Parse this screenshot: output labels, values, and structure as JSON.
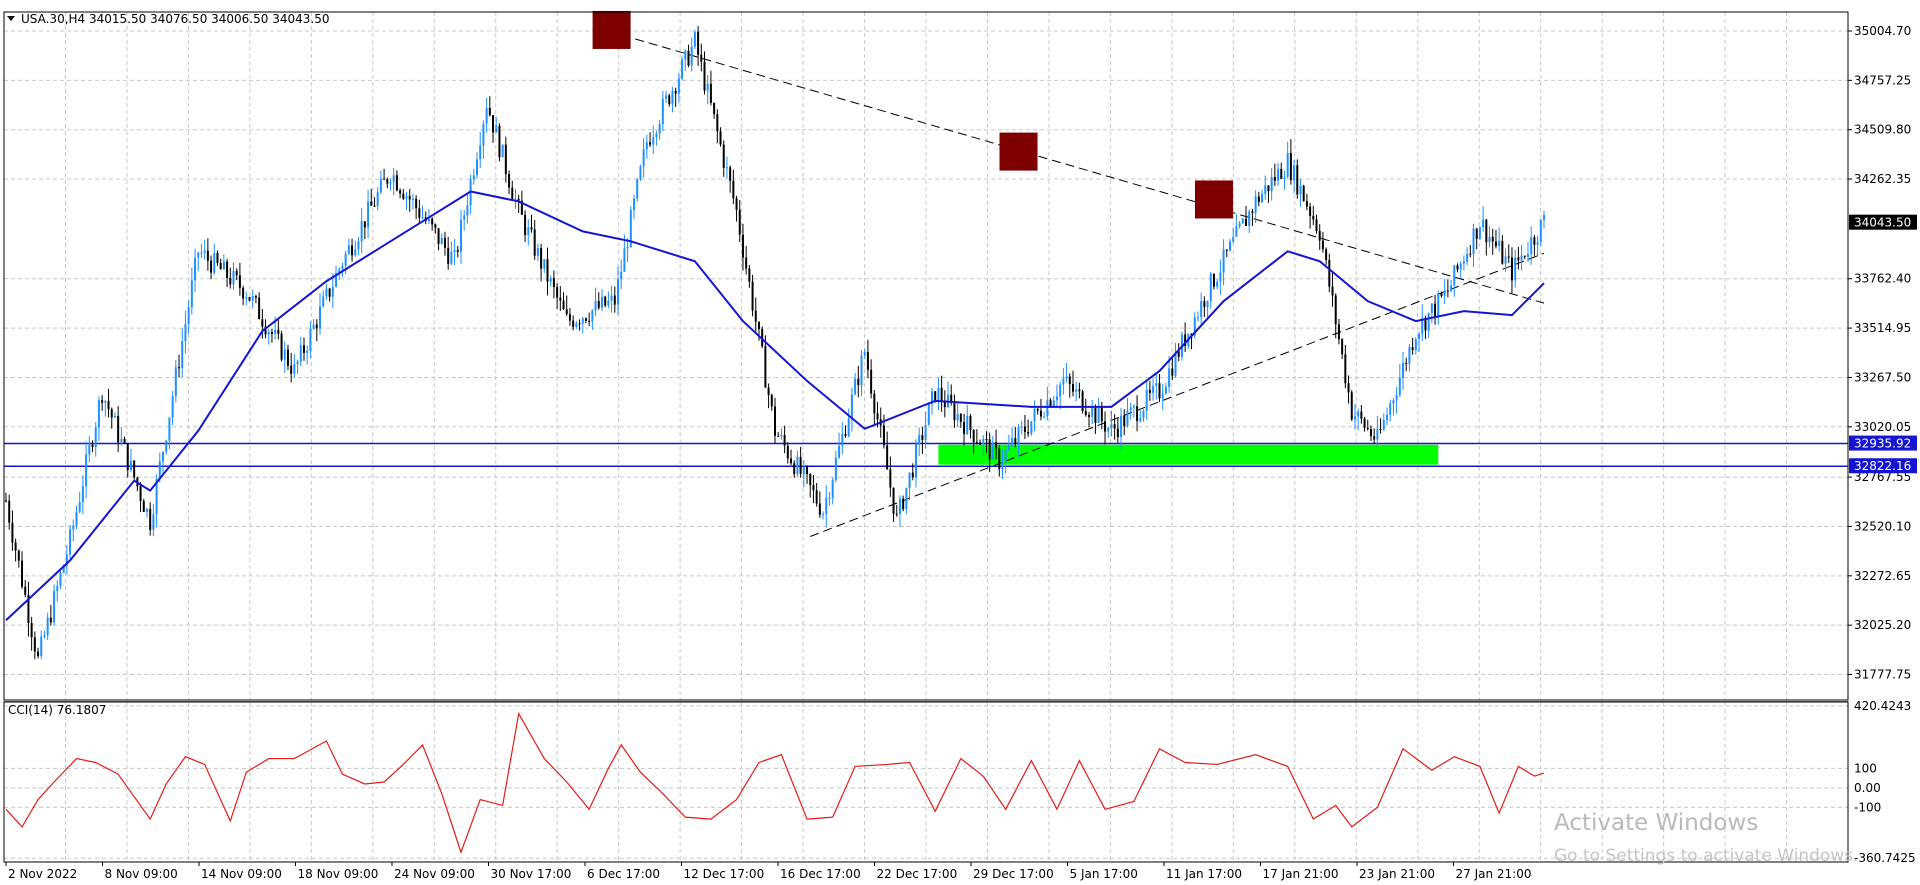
{
  "symbol_header": "USA.30,H4  34015.50 34076.50 34006.50 34043.50",
  "indicator_header": "CCI(14) 76.1807",
  "colors": {
    "grid": "#c8c8c8",
    "frame": "#000000",
    "ma": "#1414d2",
    "cci": "#e41b17",
    "horizontal_line": "#1414d2",
    "support_zone": "#00ff00",
    "peak_box": "#7e0000",
    "last_price_label": "#000000"
  },
  "chart_data": [
    {
      "type": "candlestick",
      "timeframe": "H4",
      "ylim": [
        31650,
        35100
      ],
      "y_ticks": [
        35004.7,
        34757.25,
        34509.8,
        34262.35,
        33762.4,
        33514.95,
        33267.5,
        33020.05,
        32767.55,
        32520.1,
        32272.65,
        32025.2,
        31777.75
      ],
      "x_tick_labels": [
        "2 Nov 2022",
        "8 Nov 09:00",
        "14 Nov 09:00",
        "18 Nov 09:00",
        "24 Nov 09:00",
        "30 Nov 17:00",
        "6 Dec 17:00",
        "12 Dec 17:00",
        "16 Dec 17:00",
        "22 Dec 17:00",
        "29 Dec 17:00",
        "5 Jan 17:00",
        "11 Jan 17:00",
        "17 Jan 21:00",
        "23 Jan 21:00",
        "27 Jan 21:00"
      ],
      "ohlc_last": {
        "open": 34015.5,
        "high": 34076.5,
        "low": 34006.5,
        "close": 34043.5
      },
      "last_price_label": "34043.50",
      "close_path": [
        {
          "x": 0,
          "close": 32650
        },
        {
          "x": 10,
          "close": 31850
        },
        {
          "x": 20,
          "close": 32450
        },
        {
          "x": 30,
          "close": 33200
        },
        {
          "x": 45,
          "close": 32550
        },
        {
          "x": 60,
          "close": 33900
        },
        {
          "x": 75,
          "close": 33700
        },
        {
          "x": 90,
          "close": 33300
        },
        {
          "x": 105,
          "close": 33850
        },
        {
          "x": 120,
          "close": 34300
        },
        {
          "x": 140,
          "close": 33850
        },
        {
          "x": 150,
          "close": 34650
        },
        {
          "x": 160,
          "close": 34100
        },
        {
          "x": 175,
          "close": 33550
        },
        {
          "x": 190,
          "close": 33650
        },
        {
          "x": 200,
          "close": 34450
        },
        {
          "x": 215,
          "close": 34950
        },
        {
          "x": 228,
          "close": 34100
        },
        {
          "x": 240,
          "close": 33000
        },
        {
          "x": 255,
          "close": 32600
        },
        {
          "x": 268,
          "close": 33400
        },
        {
          "x": 278,
          "close": 32550
        },
        {
          "x": 290,
          "close": 33200
        },
        {
          "x": 310,
          "close": 32850
        },
        {
          "x": 330,
          "close": 33250
        },
        {
          "x": 345,
          "close": 33000
        },
        {
          "x": 360,
          "close": 33200
        },
        {
          "x": 375,
          "close": 33700
        },
        {
          "x": 390,
          "close": 34150
        },
        {
          "x": 400,
          "close": 34350
        },
        {
          "x": 410,
          "close": 34000
        },
        {
          "x": 420,
          "close": 33100
        },
        {
          "x": 428,
          "close": 32950
        },
        {
          "x": 440,
          "close": 33500
        },
        {
          "x": 450,
          "close": 33700
        },
        {
          "x": 460,
          "close": 34050
        },
        {
          "x": 470,
          "close": 33800
        },
        {
          "x": 480,
          "close": 34050
        }
      ],
      "moving_average": [
        {
          "x": 0,
          "value": 32050
        },
        {
          "x": 20,
          "value": 32350
        },
        {
          "x": 40,
          "value": 32750
        },
        {
          "x": 45,
          "value": 32700
        },
        {
          "x": 60,
          "value": 33000
        },
        {
          "x": 80,
          "value": 33500
        },
        {
          "x": 100,
          "value": 33750
        },
        {
          "x": 120,
          "value": 33950
        },
        {
          "x": 135,
          "value": 34100
        },
        {
          "x": 145,
          "value": 34200
        },
        {
          "x": 160,
          "value": 34150
        },
        {
          "x": 180,
          "value": 34000
        },
        {
          "x": 195,
          "value": 33950
        },
        {
          "x": 215,
          "value": 33850
        },
        {
          "x": 230,
          "value": 33550
        },
        {
          "x": 250,
          "value": 33250
        },
        {
          "x": 268,
          "value": 33010
        },
        {
          "x": 290,
          "value": 33150
        },
        {
          "x": 320,
          "value": 33120
        },
        {
          "x": 345,
          "value": 33120
        },
        {
          "x": 360,
          "value": 33300
        },
        {
          "x": 380,
          "value": 33650
        },
        {
          "x": 400,
          "value": 33900
        },
        {
          "x": 410,
          "value": 33850
        },
        {
          "x": 425,
          "value": 33650
        },
        {
          "x": 440,
          "value": 33550
        },
        {
          "x": 455,
          "value": 33600
        },
        {
          "x": 470,
          "value": 33580
        },
        {
          "x": 480,
          "value": 33740
        }
      ],
      "horizontal_levels": [
        {
          "label": "32935.92",
          "price": 32935.92
        },
        {
          "label": "32822.16",
          "price": 32822.16
        }
      ],
      "support_zone": {
        "x_from": 291,
        "x_to": 447,
        "price_from": 32830,
        "price_to": 32930
      },
      "trendlines": [
        {
          "name": "upper",
          "from": {
            "x": 188,
            "price": 35004
          },
          "to": {
            "x": 480,
            "price": 33640
          }
        },
        {
          "name": "lower",
          "from": {
            "x": 251,
            "price": 32470
          },
          "to": {
            "x": 480,
            "price": 33890
          }
        }
      ],
      "peaks": [
        {
          "x": 189,
          "price": 35010
        },
        {
          "x": 316,
          "price": 34400
        },
        {
          "x": 377,
          "price": 34160
        }
      ]
    },
    {
      "type": "line",
      "name": "CCI(14)",
      "value_label": "76.1807",
      "ylim": [
        -380,
        440
      ],
      "y_tick_labels": [
        "420.4243",
        "100",
        "0.00",
        "-100",
        "-360.7425"
      ],
      "y_tick_values": [
        420.4243,
        100,
        0,
        -100,
        -360.7425
      ],
      "series": [
        {
          "x": 0,
          "y": -110
        },
        {
          "x": 5,
          "y": -200
        },
        {
          "x": 10,
          "y": -60
        },
        {
          "x": 15,
          "y": 30
        },
        {
          "x": 22,
          "y": 150
        },
        {
          "x": 28,
          "y": 130
        },
        {
          "x": 35,
          "y": 70
        },
        {
          "x": 45,
          "y": -160
        },
        {
          "x": 50,
          "y": 20
        },
        {
          "x": 56,
          "y": 160
        },
        {
          "x": 62,
          "y": 120
        },
        {
          "x": 70,
          "y": -170
        },
        {
          "x": 75,
          "y": 80
        },
        {
          "x": 82,
          "y": 150
        },
        {
          "x": 90,
          "y": 150
        },
        {
          "x": 100,
          "y": 240
        },
        {
          "x": 105,
          "y": 70
        },
        {
          "x": 112,
          "y": 20
        },
        {
          "x": 118,
          "y": 30
        },
        {
          "x": 124,
          "y": 120
        },
        {
          "x": 130,
          "y": 220
        },
        {
          "x": 136,
          "y": -30
        },
        {
          "x": 142,
          "y": -330
        },
        {
          "x": 148,
          "y": -60
        },
        {
          "x": 155,
          "y": -90
        },
        {
          "x": 160,
          "y": 380
        },
        {
          "x": 168,
          "y": 150
        },
        {
          "x": 175,
          "y": 30
        },
        {
          "x": 182,
          "y": -110
        },
        {
          "x": 188,
          "y": 100
        },
        {
          "x": 192,
          "y": 220
        },
        {
          "x": 198,
          "y": 80
        },
        {
          "x": 205,
          "y": -30
        },
        {
          "x": 212,
          "y": -150
        },
        {
          "x": 220,
          "y": -160
        },
        {
          "x": 228,
          "y": -60
        },
        {
          "x": 235,
          "y": 130
        },
        {
          "x": 242,
          "y": 170
        },
        {
          "x": 250,
          "y": -160
        },
        {
          "x": 258,
          "y": -150
        },
        {
          "x": 265,
          "y": 110
        },
        {
          "x": 275,
          "y": 120
        },
        {
          "x": 282,
          "y": 130
        },
        {
          "x": 290,
          "y": -120
        },
        {
          "x": 298,
          "y": 150
        },
        {
          "x": 305,
          "y": 60
        },
        {
          "x": 312,
          "y": -110
        },
        {
          "x": 320,
          "y": 140
        },
        {
          "x": 328,
          "y": -110
        },
        {
          "x": 335,
          "y": 140
        },
        {
          "x": 343,
          "y": -110
        },
        {
          "x": 352,
          "y": -70
        },
        {
          "x": 360,
          "y": 200
        },
        {
          "x": 368,
          "y": 130
        },
        {
          "x": 378,
          "y": 120
        },
        {
          "x": 390,
          "y": 170
        },
        {
          "x": 400,
          "y": 110
        },
        {
          "x": 408,
          "y": -160
        },
        {
          "x": 415,
          "y": -90
        },
        {
          "x": 420,
          "y": -200
        },
        {
          "x": 428,
          "y": -100
        },
        {
          "x": 436,
          "y": 200
        },
        {
          "x": 445,
          "y": 90
        },
        {
          "x": 452,
          "y": 160
        },
        {
          "x": 460,
          "y": 110
        },
        {
          "x": 466,
          "y": -130
        },
        {
          "x": 472,
          "y": 110
        },
        {
          "x": 477,
          "y": 60
        },
        {
          "x": 480,
          "y": 76
        }
      ]
    }
  ],
  "watermark": {
    "line1": "Activate Windows",
    "line2": "Go to Settings to activate Windows."
  }
}
